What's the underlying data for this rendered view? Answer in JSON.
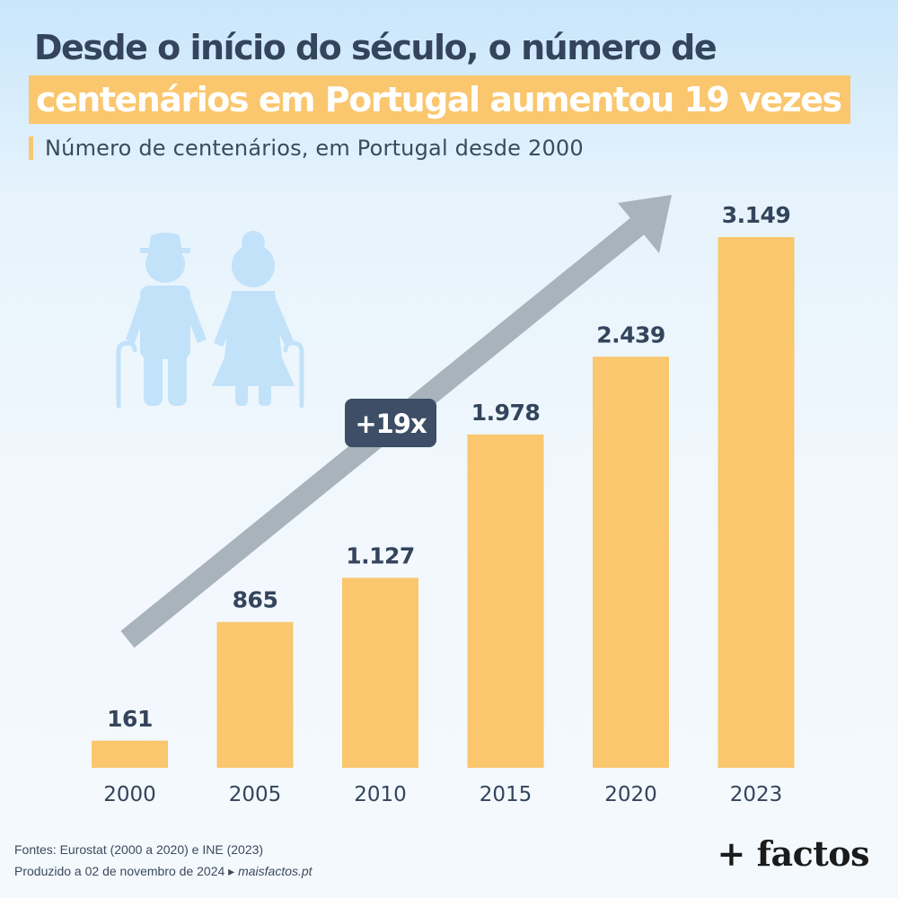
{
  "header": {
    "title_line1": "Desde o início do século, o número de",
    "title_line2": "centenários em Portugal aumentou 19 vezes",
    "subtitle": "Número de centenários, em Portugal desde 2000"
  },
  "annotation": {
    "badge": "+19x"
  },
  "footer": {
    "sources": "Fontes: Eurostat (2000 a 2020) e INE (2023)",
    "produced": "Produzido a 02 de novembro de 2024",
    "arrow_glyph": "▸",
    "site": "maisfactos.pt"
  },
  "logo": {
    "text": "+ factos"
  },
  "illustration": {
    "icon": "elderly-couple-icon",
    "color": "#c2e2fa"
  },
  "colors": {
    "bar": "#fac66e",
    "label": "#33445c",
    "arrow": "#a9b3bc",
    "badge_bg": "#3d4e66",
    "badge_text": "#ffffff"
  },
  "chart_data": {
    "type": "bar",
    "categories": [
      "2000",
      "2005",
      "2010",
      "2015",
      "2020",
      "2023"
    ],
    "values": [
      161,
      865,
      1127,
      1978,
      2439,
      3149
    ],
    "value_labels": [
      "161",
      "865",
      "1.127",
      "1.978",
      "2.439",
      "3.149"
    ],
    "ylim": [
      0,
      3149
    ],
    "grid": false,
    "legend": "none"
  }
}
